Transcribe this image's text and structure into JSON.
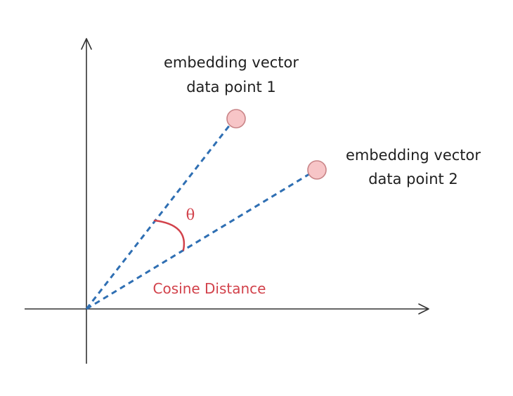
{
  "point1": {
    "label_line1": "embedding vector",
    "label_line2": "data point 1"
  },
  "point2": {
    "label_line1": "embedding vector",
    "label_line2": "data point 2"
  },
  "angle_symbol": "θ",
  "distance_label": "Cosine Distance",
  "colors": {
    "axes": "#333333",
    "vector_dashes": "#2f6fb3",
    "angle_arc_and_label": "#d2424b",
    "point_fill": "#f7c5c7"
  }
}
